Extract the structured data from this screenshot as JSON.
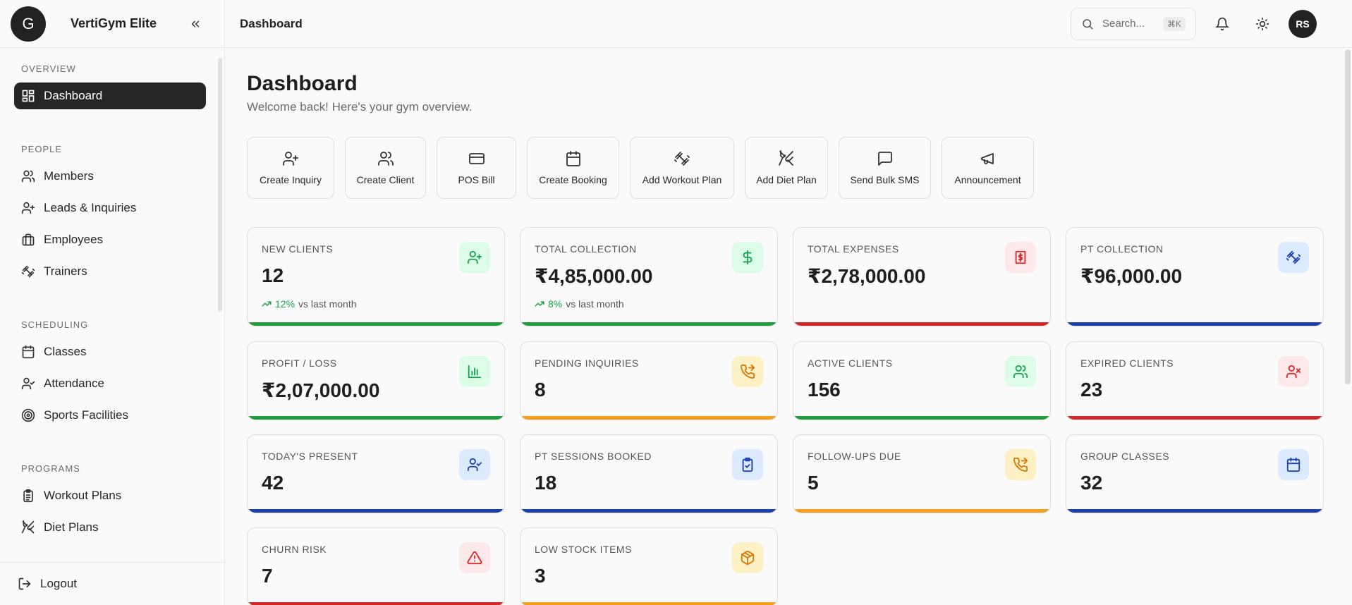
{
  "brand": {
    "logo_letter": "G",
    "name": "VertiGym Elite"
  },
  "sidebar": {
    "sections": [
      {
        "title": "OVERVIEW",
        "items": [
          {
            "label": "Dashboard",
            "icon": "dashboard-icon",
            "active": true
          }
        ]
      },
      {
        "title": "PEOPLE",
        "items": [
          {
            "label": "Members",
            "icon": "users-icon"
          },
          {
            "label": "Leads & Inquiries",
            "icon": "user-plus-icon"
          },
          {
            "label": "Employees",
            "icon": "briefcase-icon"
          },
          {
            "label": "Trainers",
            "icon": "dumbbell-icon"
          }
        ]
      },
      {
        "title": "SCHEDULING",
        "items": [
          {
            "label": "Classes",
            "icon": "calendar-icon"
          },
          {
            "label": "Attendance",
            "icon": "user-check-icon"
          },
          {
            "label": "Sports Facilities",
            "icon": "target-icon"
          }
        ]
      },
      {
        "title": "PROGRAMS",
        "items": [
          {
            "label": "Workout Plans",
            "icon": "clipboard-icon"
          },
          {
            "label": "Diet Plans",
            "icon": "utensils-icon"
          }
        ]
      }
    ],
    "logout_label": "Logout"
  },
  "header": {
    "title": "Dashboard",
    "search_placeholder": "Search...",
    "search_shortcut": "⌘K",
    "avatar_initials": "RS"
  },
  "page": {
    "title": "Dashboard",
    "subtitle": "Welcome back! Here's your gym overview."
  },
  "quick_actions": [
    {
      "label": "Create Inquiry",
      "icon": "user-plus-icon"
    },
    {
      "label": "Create Client",
      "icon": "users-icon"
    },
    {
      "label": "POS Bill",
      "icon": "credit-card-icon"
    },
    {
      "label": "Create Booking",
      "icon": "calendar-icon"
    },
    {
      "label": "Add Workout Plan",
      "icon": "dumbbell-icon"
    },
    {
      "label": "Add Diet Plan",
      "icon": "utensils-icon"
    },
    {
      "label": "Send Bulk SMS",
      "icon": "message-icon"
    },
    {
      "label": "Announcement",
      "icon": "megaphone-icon"
    }
  ],
  "stats": [
    {
      "label": "NEW CLIENTS",
      "value": "12",
      "trend_pct": "12%",
      "trend_text": "vs last month",
      "color": "green",
      "icon": "user-plus-icon"
    },
    {
      "label": "TOTAL COLLECTION",
      "value": "₹4,85,000.00",
      "trend_pct": "8%",
      "trend_text": "vs last month",
      "color": "green",
      "icon": "dollar-icon"
    },
    {
      "label": "TOTAL EXPENSES",
      "value": "₹2,78,000.00",
      "color": "red",
      "icon": "receipt-icon"
    },
    {
      "label": "PT COLLECTION",
      "value": "₹96,000.00",
      "color": "blue",
      "icon": "dumbbell-icon"
    },
    {
      "label": "PROFIT / LOSS",
      "value": "₹2,07,000.00",
      "color": "green",
      "icon": "bar-chart-icon"
    },
    {
      "label": "PENDING INQUIRIES",
      "value": "8",
      "color": "amber",
      "icon": "phone-forward-icon"
    },
    {
      "label": "ACTIVE CLIENTS",
      "value": "156",
      "color": "green",
      "icon": "users-icon"
    },
    {
      "label": "EXPIRED CLIENTS",
      "value": "23",
      "color": "red",
      "icon": "user-x-icon"
    },
    {
      "label": "TODAY'S PRESENT",
      "value": "42",
      "color": "blue",
      "icon": "user-check-icon"
    },
    {
      "label": "PT SESSIONS BOOKED",
      "value": "18",
      "color": "blue",
      "icon": "clipboard-check-icon"
    },
    {
      "label": "FOLLOW-UPS DUE",
      "value": "5",
      "color": "amber",
      "icon": "phone-forward-icon"
    },
    {
      "label": "GROUP CLASSES",
      "value": "32",
      "color": "blue",
      "icon": "calendar-icon"
    },
    {
      "label": "CHURN RISK",
      "value": "7",
      "color": "red",
      "icon": "alert-triangle-icon"
    },
    {
      "label": "LOW STOCK ITEMS",
      "value": "3",
      "color": "amber",
      "icon": "package-icon"
    }
  ]
}
